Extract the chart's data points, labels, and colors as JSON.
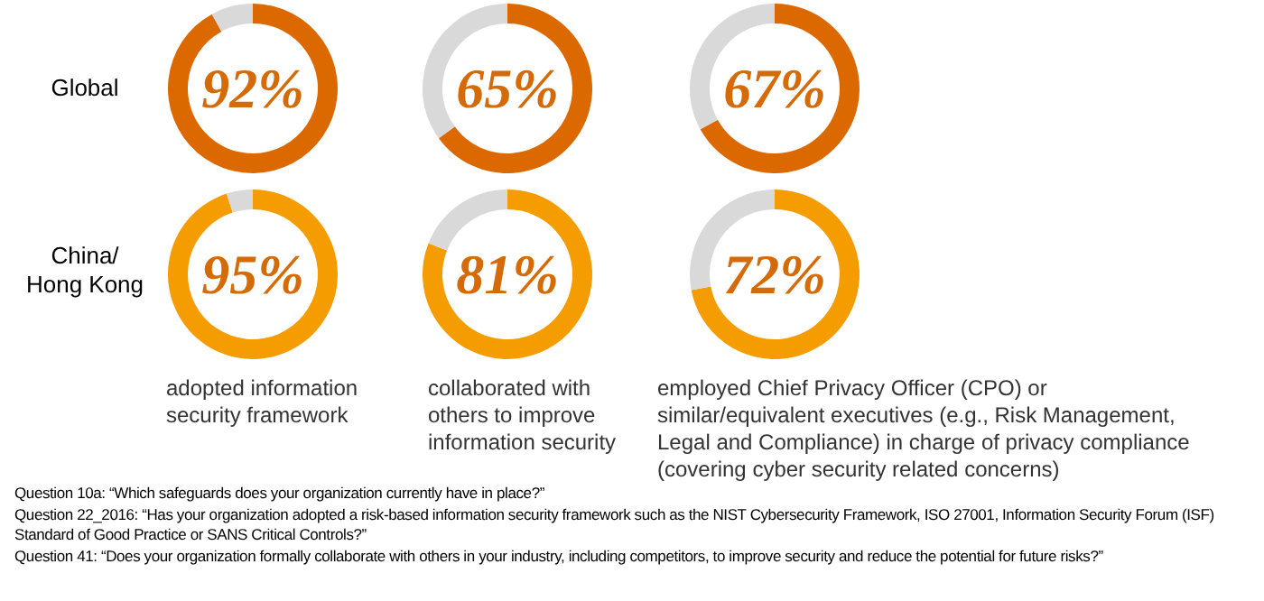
{
  "chart_data": [
    {
      "type": "donut",
      "title": "92%",
      "ylabel": "Global",
      "categories": [
        null,
        null
      ],
      "values": [
        92,
        8
      ],
      "colors": [
        "#dc6900",
        "#d9d9d9"
      ]
    },
    {
      "type": "donut",
      "title": "65%",
      "categories": [
        null,
        null
      ],
      "values": [
        65,
        35
      ],
      "colors": [
        "#dc6900",
        "#d9d9d9"
      ]
    },
    {
      "type": "donut",
      "title": "67%",
      "categories": [
        null,
        null
      ],
      "values": [
        67,
        33
      ],
      "colors": [
        "#dc6900",
        "#d9d9d9"
      ]
    },
    {
      "type": "donut",
      "title": "95%",
      "ylabel": "China/ Hong Kong",
      "xlabel": "adopted information security framework",
      "categories": [
        null,
        null
      ],
      "values": [
        95,
        5
      ],
      "colors": [
        "#f59c00",
        "#d9d9d9"
      ]
    },
    {
      "type": "donut",
      "title": "81%",
      "xlabel": "collaborated with others to improve information security",
      "categories": [
        null,
        null
      ],
      "values": [
        81,
        19
      ],
      "colors": [
        "#f59c00",
        "#d9d9d9"
      ]
    },
    {
      "type": "donut",
      "title": "72%",
      "xlabel": "employed Chief Privacy Officer (CPO) or similar/equivalent executives (e.g., Risk Management, Legal and Compliance) in charge of privacy compliance (covering cyber security related concerns)",
      "categories": [
        null,
        null
      ],
      "values": [
        72,
        28
      ],
      "colors": [
        "#f59c00",
        "#d9d9d9"
      ],
      "annotations": [
        "Question 10a: “Which safeguards does your organization currently have in place?”",
        "Question 22_2016: “Has your organization adopted a risk-based information security framework such as the NIST Cybersecurity Framework, ISO 27001, Information Security Forum (ISF) Standard of Good Practice or SANS Critical Controls?”",
        "Question 41: “Does your organization formally collaborate with others in your industry, including competitors, to improve security and reduce the potential for future risks?”"
      ]
    }
  ]
}
